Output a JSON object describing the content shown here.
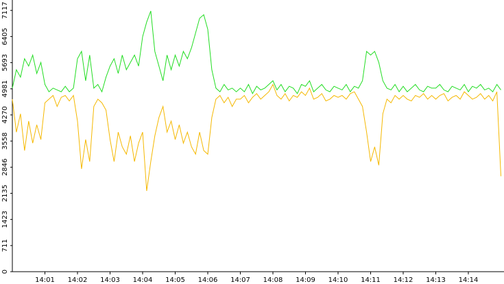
{
  "chart_data": {
    "type": "line",
    "categories": [
      null,
      null,
      null,
      null,
      null,
      null,
      null,
      null,
      "14:01",
      null,
      null,
      null,
      null,
      null,
      null,
      null,
      "14:02",
      null,
      null,
      null,
      null,
      null,
      null,
      null,
      "14:03",
      null,
      null,
      null,
      null,
      null,
      null,
      null,
      "14:04",
      null,
      null,
      null,
      null,
      null,
      null,
      null,
      "14:05",
      null,
      null,
      null,
      null,
      null,
      null,
      null,
      "14:06",
      null,
      null,
      null,
      null,
      null,
      null,
      null,
      "14:07",
      null,
      null,
      null,
      null,
      null,
      null,
      null,
      "14:08",
      null,
      null,
      null,
      null,
      null,
      null,
      null,
      "14:09",
      null,
      null,
      null,
      null,
      null,
      null,
      null,
      "14:10",
      null,
      null,
      null,
      null,
      null,
      null,
      null,
      "14:11",
      null,
      null,
      null,
      null,
      null,
      null,
      null,
      "14:12",
      null,
      null,
      null,
      null,
      null,
      null,
      null,
      "14:13",
      null,
      null,
      null,
      null,
      null,
      null,
      null,
      "14:14",
      null,
      null,
      null,
      null,
      null,
      null,
      null,
      null
    ],
    "series": [
      {
        "color": "#22dd22",
        "values": [
          5000,
          5500,
          5300,
          5800,
          5600,
          5900,
          5400,
          5700,
          5100,
          4900,
          5000,
          4950,
          4900,
          5050,
          4900,
          5000,
          5800,
          6000,
          5200,
          5900,
          5000,
          5100,
          4900,
          5300,
          5600,
          5800,
          5400,
          5900,
          5500,
          5700,
          5900,
          5600,
          6400,
          6800,
          7100,
          6000,
          5600,
          5200,
          5900,
          5500,
          5900,
          5600,
          6000,
          5800,
          6100,
          6500,
          6900,
          7000,
          6600,
          5500,
          5000,
          4900,
          5100,
          4950,
          5000,
          4900,
          5000,
          4900,
          5100,
          4850,
          5050,
          4950,
          5000,
          5100,
          5200,
          4950,
          5100,
          4900,
          5050,
          5000,
          4850,
          5100,
          5050,
          5200,
          4900,
          5000,
          5100,
          4950,
          4900,
          5050,
          5000,
          4950,
          5100,
          4900,
          5050,
          5000,
          5200,
          6000,
          5900,
          6000,
          5700,
          5200,
          5000,
          4950,
          5100,
          4900,
          5050,
          4900,
          5000,
          5100,
          4950,
          4900,
          5050,
          5000,
          5000,
          5100,
          4950,
          4900,
          5050,
          5000,
          4950,
          5100,
          4900,
          5050,
          5000,
          5100,
          4950,
          5000,
          4900,
          5100,
          4950
        ]
      },
      {
        "color": "#f5b800",
        "values": [
          4700,
          3800,
          4300,
          3300,
          4100,
          3500,
          4000,
          3600,
          4600,
          4700,
          4800,
          4500,
          4750,
          4800,
          4650,
          4800,
          4100,
          2800,
          3600,
          3000,
          4500,
          4700,
          4600,
          4400,
          3600,
          3000,
          3800,
          3400,
          3200,
          3700,
          3000,
          3500,
          3800,
          2200,
          3000,
          3700,
          4200,
          4500,
          3800,
          4100,
          3600,
          4000,
          3500,
          3800,
          3400,
          3200,
          3800,
          3300,
          3200,
          4200,
          4700,
          4800,
          4600,
          4750,
          4500,
          4700,
          4700,
          4800,
          4600,
          4750,
          4850,
          4700,
          4800,
          4900,
          5100,
          4800,
          4700,
          4850,
          4650,
          4800,
          4750,
          4900,
          4800,
          5000,
          4700,
          4750,
          4850,
          4650,
          4700,
          4800,
          4750,
          4800,
          4700,
          4850,
          4900,
          4700,
          4500,
          3800,
          3000,
          3400,
          2900,
          4300,
          4700,
          4600,
          4800,
          4700,
          4800,
          4700,
          4650,
          4800,
          4750,
          4850,
          4700,
          4800,
          4700,
          4800,
          4850,
          4650,
          4750,
          4800,
          4700,
          4900,
          4800,
          4700,
          4750,
          4850,
          4700,
          4800,
          4650,
          4900,
          2600
        ]
      }
    ],
    "ylim": [
      0,
      7400
    ],
    "yticks": [
      0,
      711,
      1423,
      2135,
      2846,
      3558,
      4270,
      4981,
      5693,
      6405,
      7117
    ],
    "grid": false
  }
}
